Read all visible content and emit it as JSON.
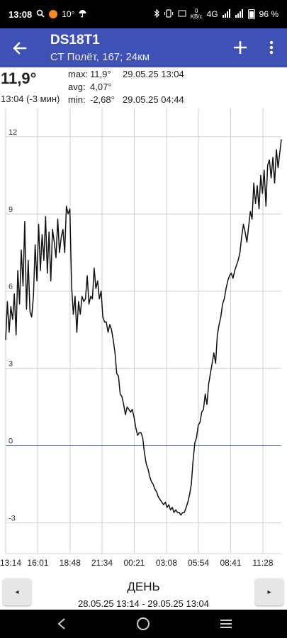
{
  "status_bar": {
    "time": "13:08",
    "weather_temp": "10°",
    "network": "4G",
    "speed_value": "0",
    "speed_unit": "KB/c",
    "battery": "96 %"
  },
  "app_bar": {
    "title": "DS18T1",
    "subtitle": "СТ Полёт, 167; 24км"
  },
  "summary": {
    "current_temp": "11,9°",
    "current_time": "13:04 (-3 мин)",
    "max_label": "max:",
    "max_value": "11,9°",
    "max_date": "29.05.25 13:04",
    "avg_label": "avg:",
    "avg_value": "4,07°",
    "min_label": "min:",
    "min_value": "-2,68°",
    "min_date": "29.05.25 04:44"
  },
  "chart_data": {
    "type": "line",
    "title": "",
    "xlabel": "",
    "ylabel": "",
    "ylim": [
      -4.2,
      13.1
    ],
    "y_ticks": [
      12,
      9,
      6,
      3,
      0,
      -3
    ],
    "y_tick_labels": [
      "12",
      "9",
      "6",
      "3",
      "0",
      "-3"
    ],
    "x_tick_labels": [
      "13:14",
      "16:01",
      "18:48",
      "21:34",
      "00:21",
      "03:08",
      "05:54",
      "08:41",
      "11:28"
    ],
    "x_ticks_hours": [
      0,
      2.783,
      5.567,
      8.333,
      11.117,
      13.9,
      16.667,
      19.45,
      22.233
    ],
    "grid": true,
    "legend": "none",
    "series": [
      {
        "x": [
          0,
          0.15,
          0.3,
          0.45,
          0.6,
          0.75,
          0.9,
          1.05,
          1.2,
          1.35,
          1.5,
          1.65,
          1.8,
          1.95,
          2.1,
          2.25,
          2.4,
          2.55,
          2.7,
          2.85,
          3.0,
          3.15,
          3.3,
          3.45,
          3.6,
          3.75,
          3.9,
          4.05,
          4.2,
          4.35,
          4.5,
          4.65,
          4.8,
          4.95,
          5.1,
          5.25,
          5.4,
          5.55,
          5.7,
          5.85,
          6.0,
          6.15,
          6.3,
          6.45,
          6.6,
          6.75,
          6.9,
          7.05,
          7.2,
          7.35,
          7.5,
          7.65,
          7.8,
          7.95,
          8.1,
          8.25,
          8.4,
          8.55,
          8.7,
          8.85,
          9.0,
          9.15,
          9.3,
          9.45,
          9.6,
          9.75,
          9.9,
          10.05,
          10.2,
          10.35,
          10.5,
          10.65,
          10.8,
          10.95,
          11.1,
          11.25,
          11.4,
          11.55,
          11.7,
          11.85,
          12.0,
          12.15,
          12.3,
          12.45,
          12.6,
          12.75,
          12.9,
          13.05,
          13.2,
          13.35,
          13.5,
          13.65,
          13.8,
          13.95,
          14.1,
          14.25,
          14.4,
          14.55,
          14.7,
          14.85,
          15.0,
          15.15,
          15.3,
          15.45,
          15.6,
          15.75,
          15.9,
          16.05,
          16.2,
          16.35,
          16.5,
          16.65,
          16.8,
          16.95,
          17.1,
          17.25,
          17.4,
          17.55,
          17.7,
          17.85,
          18.0,
          18.15,
          18.3,
          18.45,
          18.6,
          18.75,
          18.9,
          19.05,
          19.2,
          19.35,
          19.5,
          19.65,
          19.8,
          19.95,
          20.1,
          20.25,
          20.4,
          20.55,
          20.7,
          20.85,
          21.0,
          21.15,
          21.3,
          21.45,
          21.6,
          21.75,
          21.9,
          22.05,
          22.2,
          22.35,
          22.5,
          22.65,
          22.8,
          22.95,
          23.1,
          23.25,
          23.4,
          23.55,
          23.7,
          23.83
        ],
        "values": [
          4.1,
          5.6,
          4.4,
          5.4,
          4.9,
          5.9,
          4.3,
          6.8,
          5.5,
          7.6,
          6.2,
          8.7,
          5.3,
          7.2,
          5.2,
          5.0,
          5.8,
          7.8,
          6.4,
          8.6,
          6.8,
          8.2,
          7.2,
          8.9,
          6.7,
          8.3,
          6.4,
          8.4,
          7.9,
          7.3,
          8.8,
          7.5,
          8.1,
          8.4,
          7.5,
          9.3,
          9.0,
          9.2,
          6.2,
          5.1,
          5.8,
          4.4,
          5.6,
          5.1,
          5.8,
          5.6,
          5.7,
          6.6,
          5.5,
          5.8,
          5.7,
          6.9,
          6.1,
          6.4,
          5.7,
          6.0,
          5.0,
          4.8,
          4.8,
          4.4,
          4.7,
          4.5,
          4.1,
          3.6,
          2.8,
          2.7,
          2.0,
          1.9,
          1.6,
          1.2,
          1.5,
          1.4,
          1.3,
          1.4,
          1.1,
          0.7,
          0.4,
          0.5,
          0.5,
          0.3,
          -0.3,
          -0.7,
          -0.9,
          -1.2,
          -1.4,
          -1.5,
          -1.7,
          -1.8,
          -2.0,
          -2.1,
          -2.2,
          -2.3,
          -2.2,
          -2.4,
          -2.3,
          -2.5,
          -2.4,
          -2.6,
          -2.5,
          -2.6,
          -2.6,
          -2.7,
          -2.6,
          -2.6,
          -2.4,
          -2.2,
          -1.9,
          -1.5,
          -0.6,
          0.1,
          0.3,
          0.8,
          0.9,
          1.3,
          1.4,
          2.0,
          1.6,
          2.4,
          2.8,
          3.2,
          3.6,
          3.2,
          4.3,
          4.7,
          5.0,
          5.5,
          5.7,
          6.1,
          6.4,
          6.6,
          6.7,
          6.5,
          6.8,
          7.0,
          7.2,
          7.5,
          8.1,
          8.6,
          8.3,
          7.9,
          8.5,
          9.1,
          8.8,
          10.2,
          9.4,
          10.1,
          9.2,
          10.5,
          9.8,
          10.7,
          9.3,
          10.9,
          11.1,
          10.4,
          11.2,
          10.2,
          11.5,
          10.8,
          11.4,
          11.9
        ]
      }
    ]
  },
  "bottom": {
    "prev_label": "◂",
    "next_label": "▸",
    "period": "ДЕНЬ",
    "range": "28.05.25 13:14 - 29.05.25 13:04"
  }
}
